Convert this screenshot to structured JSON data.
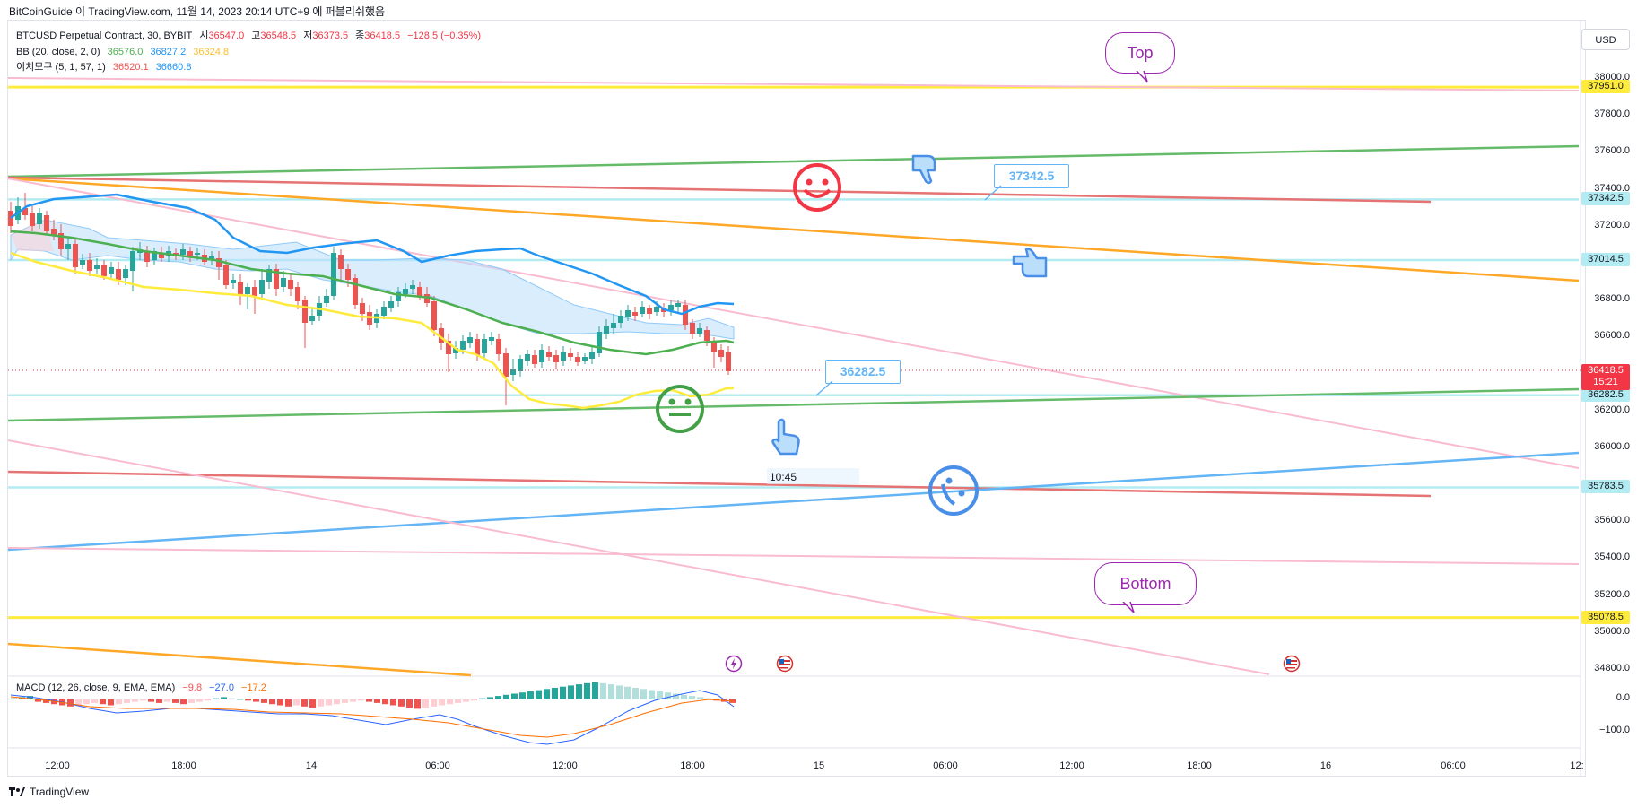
{
  "header": {
    "caption": "BitCoinGuide 이 TradingView.com, 11월 14, 2023 20:14 UTC+9 에 퍼블리쉬했음"
  },
  "legend": {
    "symbol": "BTCUSD Perpetual Contract, 30, BYBIT",
    "ohlc": [
      {
        "label": "시",
        "value": "36547.0"
      },
      {
        "label": "고",
        "value": "36548.5"
      },
      {
        "label": "저",
        "value": "36373.5"
      },
      {
        "label": "종",
        "value": "36418.5"
      }
    ],
    "change": "−128.5 (−0.35%)",
    "bb": {
      "name": "BB (20, close, 2, 0)",
      "basis": "36576.0",
      "upper": "36827.2",
      "lower": "36324.8"
    },
    "ichimoku": {
      "name": "이치모쿠 (5, 1, 57, 1)",
      "v1": "36520.1",
      "v2": "36660.8"
    },
    "macd": {
      "name": "MACD (12, 26, close, 9, EMA, EMA)",
      "hist": "−9.8",
      "macd": "−27.0",
      "signal": "−17.2"
    }
  },
  "currency_button": "USD",
  "price_axis": [
    {
      "label": "38000.0",
      "price": 38000
    },
    {
      "label": "37800.0",
      "price": 37800
    },
    {
      "label": "37600.0",
      "price": 37600
    },
    {
      "label": "37400.0",
      "price": 37400
    },
    {
      "label": "37200.0",
      "price": 37200
    },
    {
      "label": "36800.0",
      "price": 36800
    },
    {
      "label": "36600.0",
      "price": 36600
    },
    {
      "label": "36200.0",
      "price": 36200
    },
    {
      "label": "36000.0",
      "price": 36000
    },
    {
      "label": "35600.0",
      "price": 35600
    },
    {
      "label": "35400.0",
      "price": 35400
    },
    {
      "label": "35200.0",
      "price": 35200
    },
    {
      "label": "35000.0",
      "price": 35000
    },
    {
      "label": "34800.0",
      "price": 34800
    }
  ],
  "price_tags": [
    {
      "label": "37951.0",
      "price": 37951,
      "bg": "#ffeb3b",
      "fg": "#131722"
    },
    {
      "label": "37342.5",
      "price": 37342.5,
      "bg": "#b2ebf2",
      "fg": "#131722"
    },
    {
      "label": "37014.5",
      "price": 37014.5,
      "bg": "#b2ebf2",
      "fg": "#131722"
    },
    {
      "label": "36282.5",
      "price": 36282.5,
      "bg": "#b2ebf2",
      "fg": "#131722"
    },
    {
      "label": "35783.5",
      "price": 35783.5,
      "bg": "#b2ebf2",
      "fg": "#131722"
    },
    {
      "label": "35078.5",
      "price": 35078.5,
      "bg": "#ffeb3b",
      "fg": "#131722"
    }
  ],
  "last_price": {
    "label": "36418.5",
    "countdown": "15:21",
    "price": 36418.5,
    "bg": "#f23645"
  },
  "macd_axis": [
    {
      "label": "0.0",
      "value": 0
    },
    {
      "label": "−100.0",
      "value": -100
    }
  ],
  "time_axis": [
    "12:00",
    "18:00",
    "14",
    "06:00",
    "12:00",
    "18:00",
    "15",
    "06:00",
    "12:00",
    "18:00",
    "16",
    "06:00",
    "12:"
  ],
  "time_hover": "10:45",
  "annotations": {
    "top_label": "Top",
    "bottom_label": "Bottom",
    "callout_upper": "37342.5",
    "callout_lower": "36282.5"
  },
  "footer": {
    "brand": "TradingView"
  },
  "colors": {
    "up": "#26a69a",
    "down": "#ef5350",
    "bb_upper": "#2196f3",
    "bb_basis": "#4caf50",
    "bb_lower": "#ffeb3b",
    "trend_green": "#66bb6a",
    "trend_red": "#e57373",
    "trend_orange": "#ffa726",
    "trend_pink": "#f8bbd0",
    "trend_blue": "#64b5f6"
  }
}
